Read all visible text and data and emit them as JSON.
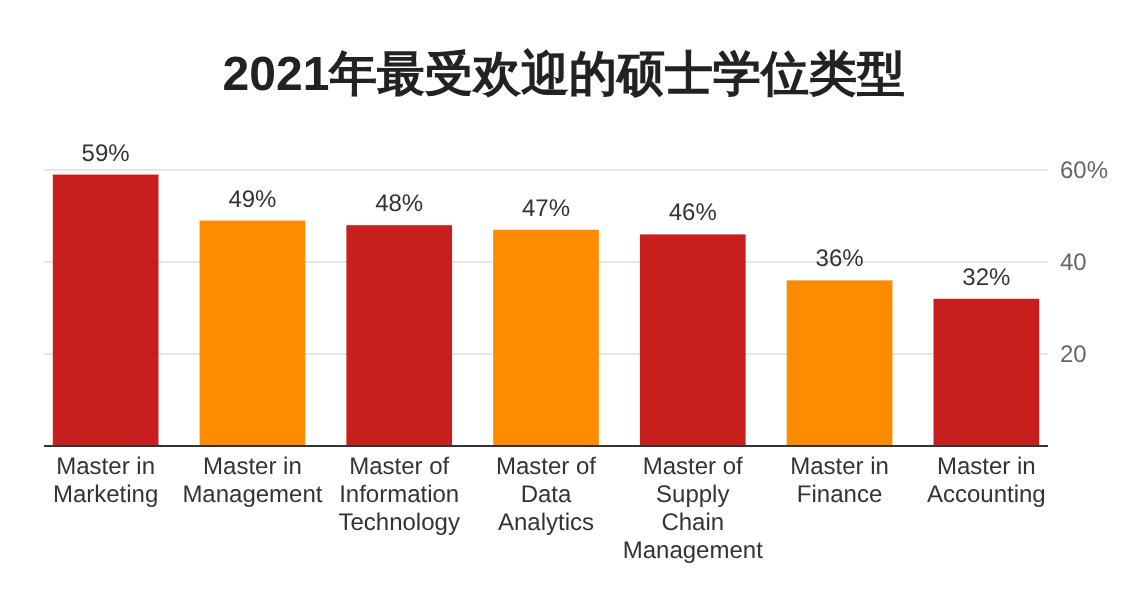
{
  "chart_data": {
    "type": "bar",
    "title": "2021年最受欢迎的硕士学位类型",
    "categories": [
      "Master in Marketing",
      "Master in Management",
      "Master of Information Technology",
      "Master of Data Analytics",
      "Master of Supply Chain Management",
      "Master in Finance",
      "Master in Accounting"
    ],
    "values": [
      59,
      49,
      48,
      47,
      46,
      36,
      32
    ],
    "colors": [
      "#c81e1e",
      "#ff8c00",
      "#c81e1e",
      "#ff8c00",
      "#c81e1e",
      "#ff8c00",
      "#c81e1e"
    ],
    "value_labels": [
      "59%",
      "49%",
      "48%",
      "47%",
      "46%",
      "36%",
      "32%"
    ],
    "ylim": [
      0,
      60
    ],
    "yticks": [
      20,
      40,
      {
        "value": 60,
        "label": "60%"
      }
    ],
    "grid": "y"
  }
}
